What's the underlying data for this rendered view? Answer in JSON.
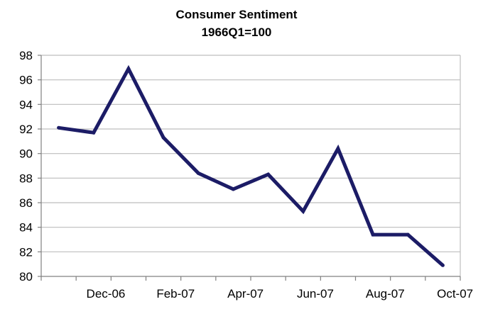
{
  "colors": {
    "line": "#1c1c66",
    "grid": "#bdbdbd",
    "axis": "#808080"
  },
  "chart_data": {
    "type": "line",
    "title": "Consumer Sentiment",
    "subtitle": "1966Q1=100",
    "xlabel": "",
    "ylabel": "",
    "ylim": [
      80,
      98
    ],
    "yticks": [
      80,
      82,
      84,
      86,
      88,
      90,
      92,
      94,
      96,
      98
    ],
    "grid": true,
    "legend": "none",
    "x": [
      "Nov-06",
      "Dec-06",
      "Jan-07",
      "Feb-07",
      "Mar-07",
      "Apr-07",
      "May-07",
      "Jun-07",
      "Jul-07",
      "Aug-07",
      "Sep-07",
      "Oct-07"
    ],
    "xtick_labels": [
      "Dec-06",
      "Feb-07",
      "Apr-07",
      "Jun-07",
      "Aug-07",
      "Oct-07"
    ],
    "series": [
      {
        "values": [
          92.1,
          91.7,
          96.9,
          91.3,
          88.4,
          87.1,
          88.3,
          85.3,
          90.4,
          83.4,
          83.4,
          80.9
        ]
      }
    ]
  }
}
